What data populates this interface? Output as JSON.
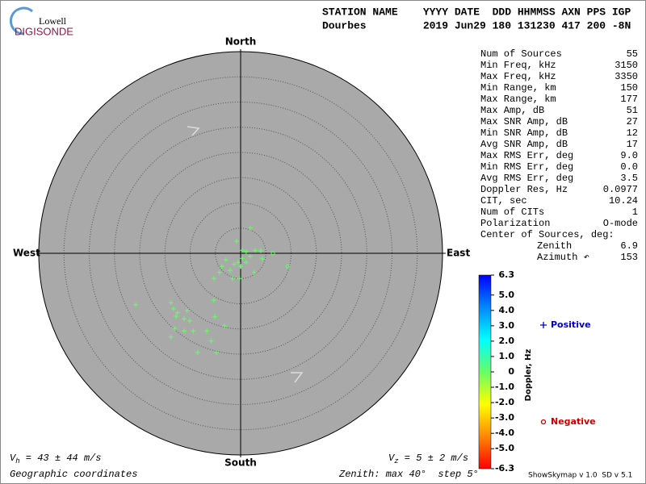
{
  "logo": {
    "top": "Lowell",
    "bottom": "DIGISONDE"
  },
  "header": {
    "line1": "STATION NAME    YYYY DATE  DDD HHMMSS AXN PPS IGP",
    "line2": "Dourbes         2019 Jun29 180 131230 417 200 -8N"
  },
  "stats": {
    "rows": [
      [
        "Num of Sources",
        "55"
      ],
      [
        "Min Freq, kHz",
        "3150"
      ],
      [
        "Max Freq, kHz",
        "3350"
      ],
      [
        "Min Range, km",
        "150"
      ],
      [
        "Max Range, km",
        "177"
      ],
      [
        "Max Amp, dB",
        "51"
      ],
      [
        "Max SNR Amp, dB",
        "27"
      ],
      [
        "Min SNR Amp, dB",
        "12"
      ],
      [
        "Avg SNR Amp, dB",
        "17"
      ],
      [
        "Max RMS Err, deg",
        "9.0"
      ],
      [
        "Min RMS Err, deg",
        "0.0"
      ],
      [
        "Avg RMS Err, deg",
        "3.5"
      ],
      [
        "Doppler Res, Hz",
        "0.0977"
      ],
      [
        "CIT, sec",
        "10.24"
      ],
      [
        "Num of CITs",
        "1"
      ],
      [
        "Polarization",
        "O-mode"
      ],
      [
        "Center of Sources, deg:"
      ],
      [
        "Zenith",
        "6.9"
      ],
      [
        "Azimuth ↶",
        "153"
      ]
    ]
  },
  "footer": {
    "vh": {
      "symbol": "V",
      "sub": "h",
      "text": " = 43 ± 44 m/s"
    },
    "vz": {
      "symbol": "V",
      "sub": "z",
      "text": " = 5 ± 2 m/s"
    },
    "coords": "Geographic coordinates",
    "zenith": "Zenith: max 40°  step 5°",
    "version": "ShowSkymap v 1.0  SD v 5.1"
  },
  "chart_data": {
    "type": "skymap",
    "directions": {
      "north": "North",
      "east": "East",
      "south": "South",
      "west": "West"
    },
    "xlim": [
      -40,
      40
    ],
    "ylim": [
      -40,
      40
    ],
    "rticks": [
      5,
      10,
      15,
      20,
      25,
      30,
      35,
      40
    ],
    "series": [
      {
        "name": "Positive",
        "marker": "+",
        "color": "#66ff66",
        "legend_color": "#0000cc",
        "x": [
          1.9,
          -0.8,
          0.3,
          1.1,
          2.9,
          4.0,
          4.3,
          1.9,
          0.3,
          -0.5,
          -1.3,
          1.1,
          -2.9,
          -3.7,
          0,
          -2.1,
          -4.2,
          -5.3,
          -1.6,
          -0.2,
          2.7,
          -20.8,
          -13.8,
          -13.3,
          -12.5,
          -12.8,
          -10.6,
          -11.2,
          -10.1,
          -5.3,
          -5.1,
          -3.2,
          -13.1,
          -11.2,
          -9.4,
          -6.7,
          -13.8,
          -5.8,
          -8.5,
          -4.8
        ],
        "y": [
          5.0,
          2.4,
          0.6,
          0.3,
          0.6,
          0.5,
          -1.1,
          -0.6,
          -1.0,
          -1.8,
          -2.2,
          -1.8,
          -1.3,
          -2.6,
          -2.6,
          -3.4,
          -3.8,
          -5.0,
          -5.0,
          -5.0,
          -3.8,
          -10.2,
          -9.8,
          -11.0,
          -11.8,
          -12.5,
          -11.4,
          -13.0,
          -13.4,
          -9.3,
          -12.6,
          -14.4,
          -14.9,
          -15.4,
          -15.4,
          -15.4,
          -16.6,
          -17.4,
          -19.7,
          -19.7
        ]
      },
      {
        "name": "Negative",
        "marker": "o",
        "color": "#66ff66",
        "legend_color": "#cc0000",
        "x": [
          6.4,
          9.3
        ],
        "y": [
          0,
          -2.6
        ]
      }
    ],
    "colorbar": {
      "label": "Doppler, Hz",
      "lim": [
        -6.3,
        6.3
      ],
      "colormap": [
        "#ff0000",
        "#ff8800",
        "#ffff00",
        "#66ff66",
        "#00ffff",
        "#0088ff",
        "#0000ff"
      ],
      "ticks": [
        6.3,
        {
          "value": 5,
          "label": "5.0"
        },
        {
          "value": 4,
          "label": "4.0"
        },
        {
          "value": 3,
          "label": "3.0"
        },
        {
          "value": 2,
          "label": "2.0"
        },
        {
          "value": 1,
          "label": "1.0"
        },
        0,
        {
          "value": -1,
          "label": "-1.0"
        },
        {
          "value": -2,
          "label": "-2.0"
        },
        {
          "value": -3,
          "label": "-3.0"
        },
        {
          "value": -4,
          "label": "-4.0"
        },
        {
          "value": -5,
          "label": "-5.0"
        },
        -6.3
      ]
    }
  }
}
